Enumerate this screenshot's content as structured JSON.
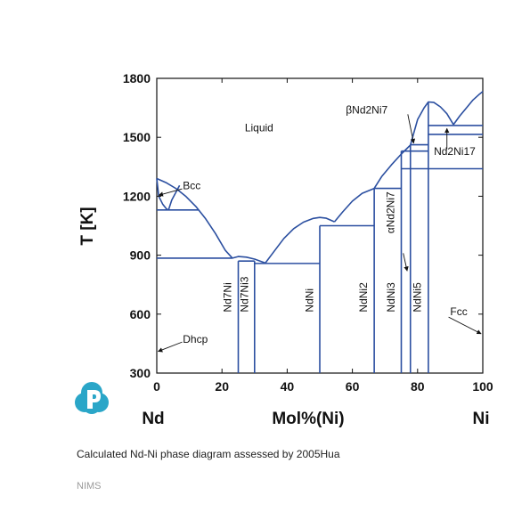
{
  "chart_data": {
    "type": "line",
    "title": "",
    "xlabel": "Mol%(Ni)",
    "ylabel": "T [K]",
    "xlim": [
      0,
      100
    ],
    "ylim": [
      300,
      1800
    ],
    "x_ticks": [
      "0",
      "20",
      "40",
      "60",
      "80",
      "100"
    ],
    "y_ticks": [
      "300",
      "600",
      "900",
      "1200",
      "1500",
      "1800"
    ],
    "endmember_left": "Nd",
    "endmember_right": "Ni",
    "grid": false,
    "curve_color": "#2b4fa0",
    "liquidus": [
      {
        "x": [
          0,
          3,
          6,
          9,
          12,
          15,
          18,
          21,
          23.2
        ],
        "y": [
          1290,
          1268,
          1238,
          1198,
          1148,
          1085,
          1010,
          925,
          885
        ]
      },
      {
        "x": [
          23.2,
          25,
          27.5,
          30,
          33.3
        ],
        "y": [
          885,
          893,
          890,
          880,
          860
        ]
      },
      {
        "x": [
          33.3,
          36,
          39,
          42,
          45,
          48,
          50,
          52,
          54.5
        ],
        "y": [
          860,
          920,
          985,
          1035,
          1068,
          1087,
          1092,
          1088,
          1070
        ]
      },
      {
        "x": [
          54.5,
          57,
          60,
          63,
          66.7
        ],
        "y": [
          1070,
          1120,
          1175,
          1215,
          1240
        ]
      },
      {
        "x": [
          66.7,
          69,
          72,
          75,
          77.8
        ],
        "y": [
          1240,
          1300,
          1360,
          1415,
          1460
        ]
      },
      {
        "x": [
          77.8,
          80,
          82,
          83.3,
          85,
          87,
          89,
          91
        ],
        "y": [
          1460,
          1590,
          1650,
          1680,
          1677,
          1655,
          1620,
          1565
        ]
      },
      {
        "x": [
          91,
          93,
          95,
          97,
          99,
          100
        ],
        "y": [
          1565,
          1610,
          1650,
          1690,
          1720,
          1733
        ]
      }
    ],
    "bcc_boundary": {
      "x": [
        0,
        0.6,
        1.8,
        3,
        3.6
      ],
      "y": [
        1290,
        1200,
        1160,
        1135,
        1130
      ]
    },
    "bcc_right": {
      "x": [
        3.6,
        4.6,
        7
      ],
      "y": [
        1130,
        1180,
        1255
      ]
    },
    "horizontal_lines": [
      {
        "x": [
          0,
          13
        ],
        "y": 1130
      },
      {
        "x": [
          0,
          23.2
        ],
        "y": 885
      },
      {
        "x": [
          25,
          30
        ],
        "y": 870
      },
      {
        "x": [
          30,
          50
        ],
        "y": 858
      },
      {
        "x": [
          50,
          66.7
        ],
        "y": 1050
      },
      {
        "x": [
          66.7,
          75
        ],
        "y": 1240
      },
      {
        "x": [
          75,
          100
        ],
        "y": 1340
      },
      {
        "x": [
          75,
          83.3
        ],
        "y": 1430
      },
      {
        "x": [
          77.8,
          83.3
        ],
        "y": 1462
      },
      {
        "x": [
          83.3,
          100
        ],
        "y": 1515
      },
      {
        "x": [
          83.3,
          100
        ],
        "y": 1560
      }
    ],
    "compound_lines": [
      {
        "name": "Nd7Ni",
        "x": 25,
        "y_top": 870
      },
      {
        "name": "Nd7Ni3",
        "x": 30,
        "y_top": 870
      },
      {
        "name": "NdNi",
        "x": 50,
        "y_top": 1050
      },
      {
        "name": "NdNi2",
        "x": 66.7,
        "y_top": 1240
      },
      {
        "name": "NdNi3",
        "x": 75,
        "y_top": 1430
      },
      {
        "name": "NdNi5",
        "x": 83.3,
        "y_top": 1680
      },
      {
        "name": "Nd2Ni7",
        "x": 77.8,
        "y_top": 1462
      }
    ],
    "annotations": [
      {
        "text": "Liquid",
        "x": 27,
        "y": 1530
      },
      {
        "text": "Bcc",
        "x": 8,
        "y": 1235
      },
      {
        "text": "Dhcp",
        "x": 8,
        "y": 455
      },
      {
        "text": "Fcc",
        "x": 90,
        "y": 595
      },
      {
        "text": "βNd2Ni7",
        "x": 58,
        "y": 1620
      },
      {
        "text": "Nd2Ni17",
        "x": 85,
        "y": 1410
      },
      {
        "text": "αNd2Ni7",
        "x": 72.8,
        "y": 1010
      },
      {
        "text": "Nd7Ni",
        "x": 22.8,
        "y": 610
      },
      {
        "text": "Nd7Ni3",
        "x": 28,
        "y": 610
      },
      {
        "text": "NdNi",
        "x": 48,
        "y": 610
      },
      {
        "text": "NdNi2",
        "x": 64.5,
        "y": 610
      },
      {
        "text": "NdNi3",
        "x": 73,
        "y": 610
      },
      {
        "text": "NdNi5",
        "x": 81,
        "y": 610
      }
    ]
  },
  "caption": {
    "text": "Calculated Nd-Ni phase diagram assessed by ",
    "reference": "2005Hua"
  },
  "credit": "NIMS"
}
